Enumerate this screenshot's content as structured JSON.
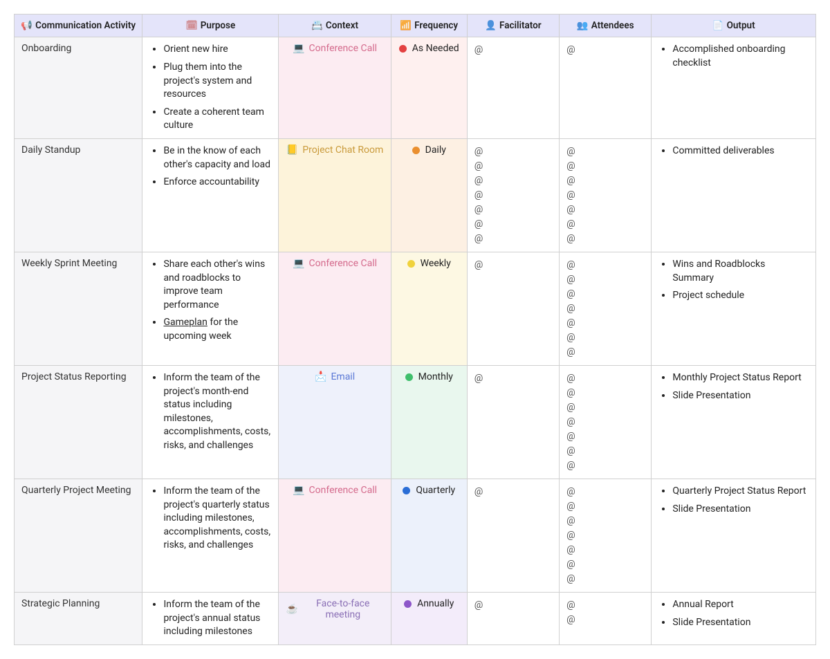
{
  "table": {
    "header_bg": "#e4e4fa",
    "activity_col_bg": "#f5f5f7",
    "col_widths_pct": [
      16,
      17,
      14,
      9.5,
      11.5,
      11.5,
      20.5
    ],
    "columns": [
      {
        "label": "Communication Activity",
        "icon": "📢",
        "icon_color": "#444"
      },
      {
        "label": "Purpose",
        "icon": "🗓",
        "icon_color": "#c96b6b"
      },
      {
        "label": "Context",
        "icon": "📇",
        "icon_color": "#4a8fd6"
      },
      {
        "label": "Frequency",
        "icon": "📶",
        "icon_color": "#b8b8b8"
      },
      {
        "label": "Facilitator",
        "icon": "👤",
        "icon_color": "#6b6b8f"
      },
      {
        "label": "Attendees",
        "icon": "👥",
        "icon_color": "#6b6b8f"
      },
      {
        "label": "Output",
        "icon": "📄",
        "icon_color": "#888"
      }
    ],
    "rows": [
      {
        "activity": "Onboarding",
        "purpose": [
          "Orient new hire",
          "Plug them into the project's system and resources",
          "Create a coherent team culture"
        ],
        "context": {
          "emoji": "💻",
          "label": "Conference Call",
          "text_color": "#d46a8c",
          "bg": "#fcecf2"
        },
        "frequency": {
          "label": "As Needed",
          "dot_color": "#e34141",
          "bg": "#fef0ef"
        },
        "facilitator_count": 1,
        "attendees_count": 1,
        "output": [
          "Accomplished onboarding checklist"
        ]
      },
      {
        "activity": "Daily Standup",
        "purpose": [
          "Be in the know of each other's capacity and load",
          "Enforce accountability"
        ],
        "context": {
          "emoji": "📒",
          "label": "Project Chat Room",
          "text_color": "#c99a3b",
          "bg": "#fdf3da"
        },
        "frequency": {
          "label": "Daily",
          "dot_color": "#ea8f2f",
          "bg": "#fdf0e3"
        },
        "facilitator_count": 7,
        "attendees_count": 7,
        "output": [
          "Committed deliverables"
        ]
      },
      {
        "activity": "Weekly Sprint Meeting",
        "purpose": [
          "Share each other's wins and roadblocks to improve team performance",
          {
            "html": "<span class='underline'>Gameplan</span> for the upcoming week"
          }
        ],
        "context": {
          "emoji": "💻",
          "label": "Conference Call",
          "text_color": "#d46a8c",
          "bg": "#fcecf2"
        },
        "frequency": {
          "label": "Weekly",
          "dot_color": "#f0d23c",
          "bg": "#fdf8e3"
        },
        "facilitator_count": 1,
        "attendees_count": 7,
        "output": [
          "Wins and Roadblocks Summary",
          "Project schedule"
        ]
      },
      {
        "activity": "Project Status Reporting",
        "purpose": [
          "Inform the team of the project's month-end status including milestones, accomplishments, costs, risks, and challenges"
        ],
        "context": {
          "emoji": "📩",
          "label": "Email",
          "text_color": "#5a78d6",
          "bg": "#eef1fb"
        },
        "frequency": {
          "label": "Monthly",
          "dot_color": "#3fbf6b",
          "bg": "#e9f7ee"
        },
        "facilitator_count": 1,
        "attendees_count": 7,
        "output": [
          "Monthly Project Status Report",
          "Slide Presentation"
        ]
      },
      {
        "activity": "Quarterly Project Meeting",
        "purpose": [
          "Inform the team of the project's quarterly status including milestones, accomplishments, costs, risks, and challenges"
        ],
        "context": {
          "emoji": "💻",
          "label": "Conference Call",
          "text_color": "#d46a8c",
          "bg": "#fcecf2"
        },
        "frequency": {
          "label": "Quarterly",
          "dot_color": "#2a6ed6",
          "bg": "#ecf1fb"
        },
        "facilitator_count": 1,
        "attendees_count": 7,
        "output": [
          "Quarterly Project Status Report",
          "Slide Presentation"
        ]
      },
      {
        "activity": "Strategic Planning",
        "purpose": [
          "Inform the team of the project's annual status including milestones"
        ],
        "context": {
          "emoji": "☕",
          "label": "Face-to-face meeting",
          "text_color": "#8a6fb5",
          "bg": "#f3eef9"
        },
        "frequency": {
          "label": "Annually",
          "dot_color": "#8d56c9",
          "bg": "#f3ecfa"
        },
        "facilitator_count": 1,
        "attendees_count": 2,
        "output": [
          "Annual Report",
          "Slide Presentation"
        ],
        "truncated": true
      }
    ]
  }
}
